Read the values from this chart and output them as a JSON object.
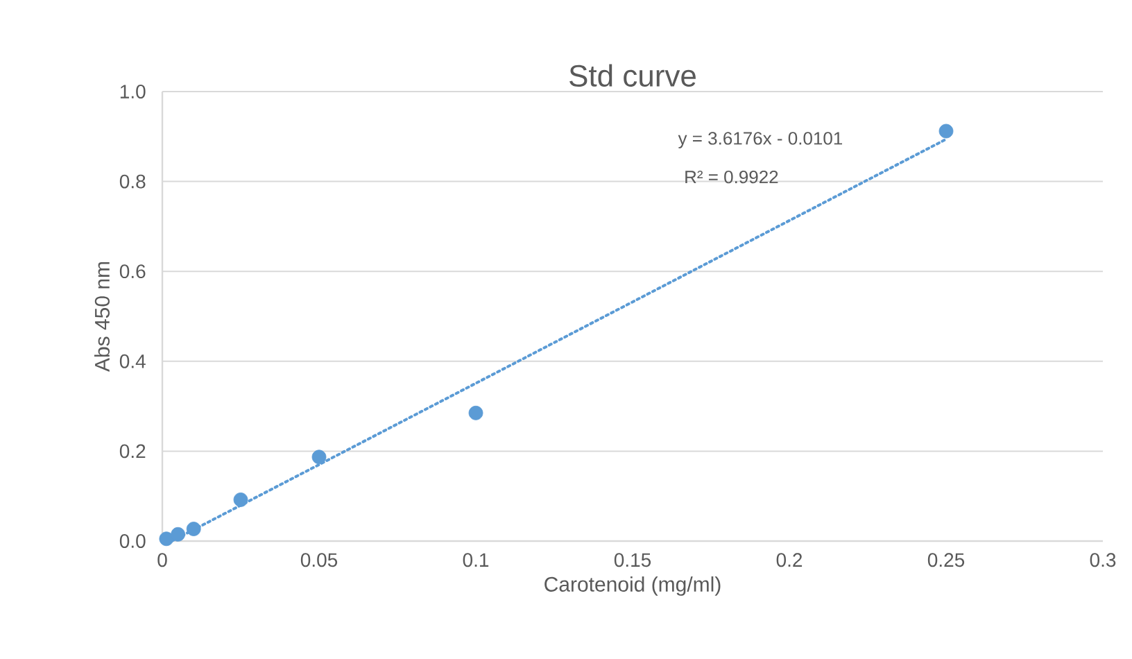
{
  "chart_data": {
    "type": "scatter",
    "title": "Std curve",
    "xlabel": "Carotenoid (mg/ml)",
    "ylabel": "Abs 450 nm",
    "annotations": [
      "y = 3.6176x - 0.0101",
      "R² = 0.9922"
    ],
    "series": [
      {
        "color": "#5b9bd5",
        "marker": "circle",
        "x": [
          0.0013,
          0.005,
          0.01,
          0.025,
          0.05,
          0.1,
          0.25
        ],
        "values": [
          0.005,
          0.015,
          0.027,
          0.092,
          0.187,
          0.285,
          0.912
        ]
      },
      {
        "type": "line",
        "color": "#5b9bd5",
        "line_style": "dotted",
        "marker": "none",
        "x": [
          0.003,
          0.25
        ],
        "values": [
          0.0,
          0.894
        ]
      }
    ],
    "xlim": [
      0,
      0.3
    ],
    "ylim": [
      0,
      1.0
    ],
    "xticks": [
      0,
      0.05,
      0.1,
      0.15,
      0.2,
      0.25,
      0.3
    ],
    "yticks": [
      {
        "value": 0,
        "label": "0.0"
      },
      {
        "value": 0.2,
        "label": "0.2"
      },
      {
        "value": 0.4,
        "label": "0.4"
      },
      {
        "value": 0.6,
        "label": "0.6"
      },
      {
        "value": 0.8,
        "label": "0.8"
      },
      {
        "value": 1.0,
        "label": "1.0"
      }
    ],
    "grid": "y"
  }
}
